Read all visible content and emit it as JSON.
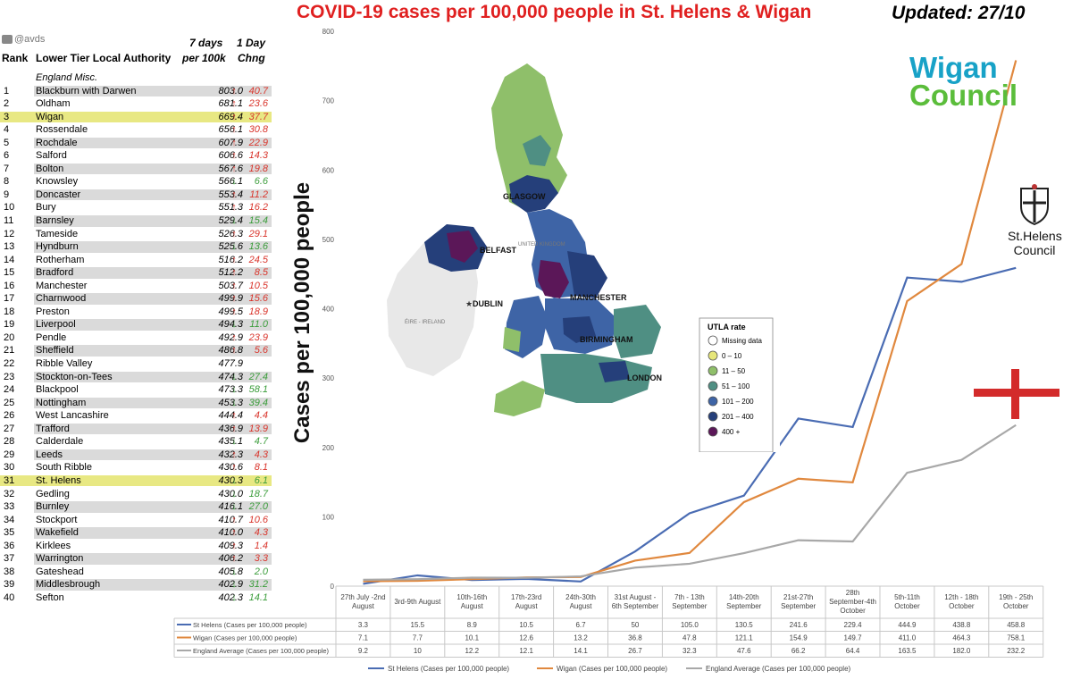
{
  "title": "COVID-19 cases per 100,000 people in St. Helens & Wigan",
  "updated": "Updated: 27/10",
  "table": {
    "twitter_handle": "@avds",
    "headers": {
      "rank": "Rank",
      "authority": "Lower Tier Local Authority",
      "seven_day_l1": "7 days",
      "seven_day_l2": "per 100k",
      "one_day_l1": "1 Day",
      "one_day_l2": "Chng"
    },
    "group": "England Misc.",
    "rows": [
      {
        "rank": "1",
        "name": "Blackburn with Darwen",
        "value": "803.0",
        "dir": "up",
        "change": "40.7"
      },
      {
        "rank": "2",
        "name": "Oldham",
        "value": "681.1",
        "dir": "up",
        "change": "23.6"
      },
      {
        "rank": "3",
        "name": "Wigan",
        "value": "669.4",
        "dir": "up",
        "change": "37.7",
        "highlight": true
      },
      {
        "rank": "4",
        "name": "Rossendale",
        "value": "656.1",
        "dir": "up",
        "change": "30.8"
      },
      {
        "rank": "5",
        "name": "Rochdale",
        "value": "607.9",
        "dir": "up",
        "change": "22.9"
      },
      {
        "rank": "6",
        "name": "Salford",
        "value": "606.6",
        "dir": "up",
        "change": "14.3"
      },
      {
        "rank": "7",
        "name": "Bolton",
        "value": "567.6",
        "dir": "up",
        "change": "19.8"
      },
      {
        "rank": "8",
        "name": "Knowsley",
        "value": "566.1",
        "dir": "down",
        "change": "6.6"
      },
      {
        "rank": "9",
        "name": "Doncaster",
        "value": "553.4",
        "dir": "up",
        "change": "11.2"
      },
      {
        "rank": "10",
        "name": "Bury",
        "value": "551.3",
        "dir": "up",
        "change": "16.2"
      },
      {
        "rank": "11",
        "name": "Barnsley",
        "value": "529.4",
        "dir": "down",
        "change": "15.4"
      },
      {
        "rank": "12",
        "name": "Tameside",
        "value": "526.3",
        "dir": "up",
        "change": "29.1"
      },
      {
        "rank": "13",
        "name": "Hyndburn",
        "value": "525.6",
        "dir": "down",
        "change": "13.6"
      },
      {
        "rank": "14",
        "name": "Rotherham",
        "value": "516.2",
        "dir": "up",
        "change": "24.5"
      },
      {
        "rank": "15",
        "name": "Bradford",
        "value": "512.2",
        "dir": "up",
        "change": "8.5"
      },
      {
        "rank": "16",
        "name": "Manchester",
        "value": "503.7",
        "dir": "up",
        "change": "10.5"
      },
      {
        "rank": "17",
        "name": "Charnwood",
        "value": "499.9",
        "dir": "up",
        "change": "15.6"
      },
      {
        "rank": "18",
        "name": "Preston",
        "value": "499.5",
        "dir": "up",
        "change": "18.9"
      },
      {
        "rank": "19",
        "name": "Liverpool",
        "value": "494.3",
        "dir": "down",
        "change": "11.0"
      },
      {
        "rank": "20",
        "name": "Pendle",
        "value": "492.9",
        "dir": "up",
        "change": "23.9"
      },
      {
        "rank": "21",
        "name": "Sheffield",
        "value": "486.8",
        "dir": "up",
        "change": "5.6"
      },
      {
        "rank": "22",
        "name": "Ribble Valley",
        "value": "477.9",
        "dir": "",
        "change": ""
      },
      {
        "rank": "23",
        "name": "Stockton-on-Tees",
        "value": "474.3",
        "dir": "down",
        "change": "27.4"
      },
      {
        "rank": "24",
        "name": "Blackpool",
        "value": "473.3",
        "dir": "down",
        "change": "58.1"
      },
      {
        "rank": "25",
        "name": "Nottingham",
        "value": "453.3",
        "dir": "down",
        "change": "39.4"
      },
      {
        "rank": "26",
        "name": "West Lancashire",
        "value": "444.4",
        "dir": "up",
        "change": "4.4"
      },
      {
        "rank": "27",
        "name": "Trafford",
        "value": "436.9",
        "dir": "up",
        "change": "13.9"
      },
      {
        "rank": "28",
        "name": "Calderdale",
        "value": "435.1",
        "dir": "down",
        "change": "4.7"
      },
      {
        "rank": "29",
        "name": "Leeds",
        "value": "432.3",
        "dir": "up",
        "change": "4.3"
      },
      {
        "rank": "30",
        "name": "South Ribble",
        "value": "430.6",
        "dir": "up",
        "change": "8.1"
      },
      {
        "rank": "31",
        "name": "St. Helens",
        "value": "430.3",
        "dir": "down",
        "change": "6.1",
        "highlight": true
      },
      {
        "rank": "32",
        "name": "Gedling",
        "value": "430.0",
        "dir": "down",
        "change": "18.7"
      },
      {
        "rank": "33",
        "name": "Burnley",
        "value": "416.1",
        "dir": "down",
        "change": "27.0"
      },
      {
        "rank": "34",
        "name": "Stockport",
        "value": "410.7",
        "dir": "up",
        "change": "10.6"
      },
      {
        "rank": "35",
        "name": "Wakefield",
        "value": "410.0",
        "dir": "up",
        "change": "4.3"
      },
      {
        "rank": "36",
        "name": "Kirklees",
        "value": "409.3",
        "dir": "up",
        "change": "1.4"
      },
      {
        "rank": "37",
        "name": "Warrington",
        "value": "406.2",
        "dir": "up",
        "change": "3.3"
      },
      {
        "rank": "38",
        "name": "Gateshead",
        "value": "405.8",
        "dir": "down",
        "change": "2.0"
      },
      {
        "rank": "39",
        "name": "Middlesbrough",
        "value": "402.9",
        "dir": "down",
        "change": "31.2"
      },
      {
        "rank": "40",
        "name": "Sefton",
        "value": "402.3",
        "dir": "down",
        "change": "14.1"
      }
    ]
  },
  "map": {
    "labels": [
      "GLASGOW",
      "BELFAST",
      "DUBLIN",
      "MANCHESTER",
      "BIRMINGHAM",
      "LONDON",
      "UNITED KINGDOM",
      "ÉIRE - IRELAND"
    ],
    "legend_title": "UTLA rate",
    "legend": [
      {
        "label": "Missing data",
        "color": "#ffffff"
      },
      {
        "label": "0 – 10",
        "color": "#e6e67a"
      },
      {
        "label": "11 – 50",
        "color": "#8fbf6a"
      },
      {
        "label": "51 – 100",
        "color": "#4f8f83"
      },
      {
        "label": "101 – 200",
        "color": "#3e64a6"
      },
      {
        "label": "201 – 400",
        "color": "#253f7a"
      },
      {
        "label": "400 +",
        "color": "#5b1758"
      }
    ]
  },
  "logos": {
    "wigan_line1": "Wigan",
    "wigan_line2": "Council",
    "sthelens_line1": "St.Helens",
    "sthelens_line2": "Council"
  },
  "chart_data": {
    "type": "line",
    "ylabel": "Cases per 100,000 people",
    "ylim": [
      0,
      800
    ],
    "yticks": [
      0,
      100,
      200,
      300,
      400,
      500,
      600,
      700,
      800
    ],
    "grid": false,
    "legend_position": "bottom",
    "categories": [
      [
        "27th July -2nd",
        "August"
      ],
      [
        "3rd-9th August"
      ],
      [
        "10th-16th",
        "August"
      ],
      [
        "17th-23rd",
        "August"
      ],
      [
        "24th-30th",
        "August"
      ],
      [
        "31st August -",
        "6th September"
      ],
      [
        "7th - 13th",
        "September"
      ],
      [
        "14th-20th",
        "September"
      ],
      [
        "21st-27th",
        "September"
      ],
      [
        "28th",
        "September-4th",
        "October"
      ],
      [
        "5th-11th",
        "October"
      ],
      [
        "12th - 18th",
        "October"
      ],
      [
        "19th - 25th",
        "October"
      ]
    ],
    "series": [
      {
        "name": "St Helens (Cases per 100,000 people)",
        "color": "#4a6cb3",
        "values": [
          3.3,
          15.5,
          8.9,
          10.5,
          6.7,
          50,
          105.0,
          130.5,
          241.6,
          229.4,
          444.9,
          438.8,
          458.8
        ]
      },
      {
        "name": "Wigan (Cases per 100,000 people)",
        "color": "#e0883e",
        "values": [
          7.1,
          7.7,
          10.1,
          12.6,
          13.2,
          36.8,
          47.8,
          121.1,
          154.9,
          149.7,
          411.0,
          464.3,
          758.1
        ]
      },
      {
        "name": "England Average (Cases per 100,000 people)",
        "color": "#a8a8a8",
        "values": [
          9.2,
          10,
          12.2,
          12.1,
          14.1,
          26.7,
          32.3,
          47.6,
          66.2,
          64.4,
          163.5,
          182.0,
          232.2
        ]
      }
    ],
    "table_display": [
      [
        "3.3",
        "15.5",
        "8.9",
        "10.5",
        "6.7",
        "50",
        "105.0",
        "130.5",
        "241.6",
        "229.4",
        "444.9",
        "438.8",
        "458.8"
      ],
      [
        "7.1",
        "7.7",
        "10.1",
        "12.6",
        "13.2",
        "36.8",
        "47.8",
        "121.1",
        "154.9",
        "149.7",
        "411.0",
        "464.3",
        "758.1"
      ],
      [
        "9.2",
        "10",
        "12.2",
        "12.1",
        "14.1",
        "26.7",
        "32.3",
        "47.6",
        "66.2",
        "64.4",
        "163.5",
        "182.0",
        "232.2"
      ]
    ]
  }
}
